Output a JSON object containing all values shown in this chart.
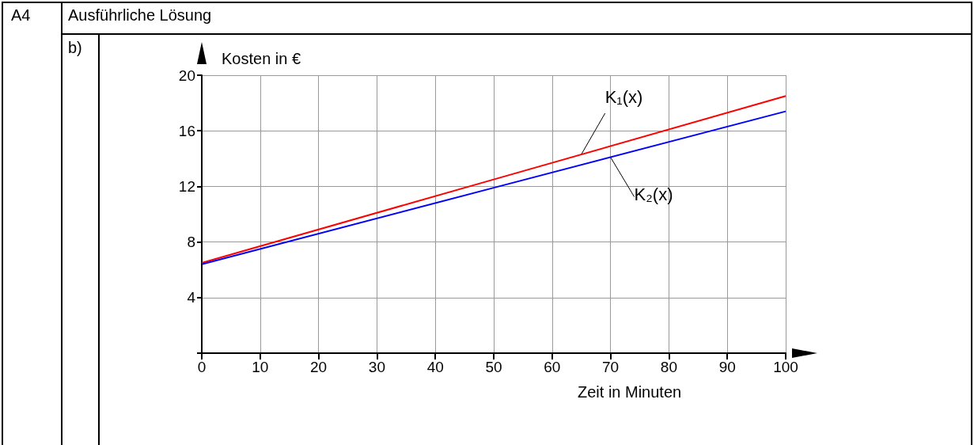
{
  "chart_data": {
    "type": "line",
    "title": "Ausführliche Lösung",
    "xlabel": "Zeit in Minuten",
    "ylabel": "Kosten in €",
    "annotations": [
      "A4",
      "b)"
    ],
    "x": [
      0,
      50,
      100
    ],
    "series": [
      {
        "name": "K₁(x)",
        "color": "#ff0000",
        "values": [
          6.5,
          12.5,
          18.5
        ]
      },
      {
        "name": "K₂(x)",
        "color": "#0000ff",
        "values": [
          6.4,
          11.9,
          17.4
        ]
      }
    ],
    "xlim": [
      0,
      100
    ],
    "xticks": [
      0,
      10,
      20,
      30,
      40,
      50,
      60,
      70,
      80,
      90,
      100
    ],
    "ylim": [
      0,
      20
    ],
    "yticks": [
      {
        "value": 0,
        "label": null
      },
      4,
      8,
      12,
      16,
      20
    ],
    "grid": true,
    "legend": false,
    "marker": "none",
    "line_style": "solid"
  }
}
